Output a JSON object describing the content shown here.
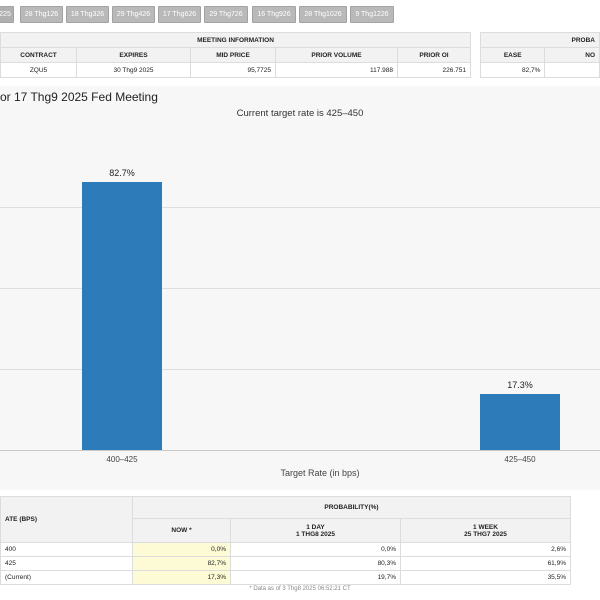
{
  "tabs": [
    "225",
    "28 Thg126",
    "18 Thg326",
    "29 Thg426",
    "17 Thg626",
    "29 Thg726",
    "16 Thg926",
    "28 Thg1026",
    "9 Thg1226"
  ],
  "meeting_info": {
    "title": "MEETING INFORMATION",
    "headers": [
      "CONTRACT",
      "EXPIRES",
      "MID PRICE",
      "PRIOR VOLUME",
      "PRIOR OI"
    ],
    "row": [
      "ZQU5",
      "30 Thg9 2025",
      "95,7725",
      "117.988",
      "226.751"
    ]
  },
  "probability_summary": {
    "title": "PROBA",
    "headers": [
      "EASE",
      "NO"
    ],
    "row": [
      "82,7%",
      ""
    ]
  },
  "chart": {
    "heading": "or 17 Thg9 2025 Fed Meeting",
    "subtitle": "Current target rate is 425–450"
  },
  "chart_data": {
    "type": "bar",
    "categories": [
      "400–425",
      "425–450"
    ],
    "values": [
      82.7,
      17.3
    ],
    "data_labels": [
      "82.7%",
      "17.3%"
    ],
    "title": "",
    "xlabel": "Target Rate (in bps)",
    "ylabel": "",
    "ylim": [
      0,
      100
    ],
    "colors": [
      "#2e7bba"
    ]
  },
  "prob_table": {
    "row_header": "ATE (BPS)",
    "group_header": "PROBABILITY(%)",
    "columns": [
      {
        "line1": "NOW *",
        "line2": ""
      },
      {
        "line1": "1 DAY",
        "line2": "1 THG8 2025"
      },
      {
        "line1": "1 WEEK",
        "line2": "25 THG7 2025"
      }
    ],
    "rows": [
      {
        "label": "400",
        "values": [
          "0,0%",
          "0,0%",
          "2,6%"
        ]
      },
      {
        "label": "425",
        "values": [
          "82,7%",
          "80,3%",
          "61,9%"
        ]
      },
      {
        "label": "(Current)",
        "values": [
          "17,3%",
          "19,7%",
          "35,5%"
        ]
      }
    ]
  },
  "footnote": "* Data as of 3 Thg8 2025 06:52:21 CT"
}
